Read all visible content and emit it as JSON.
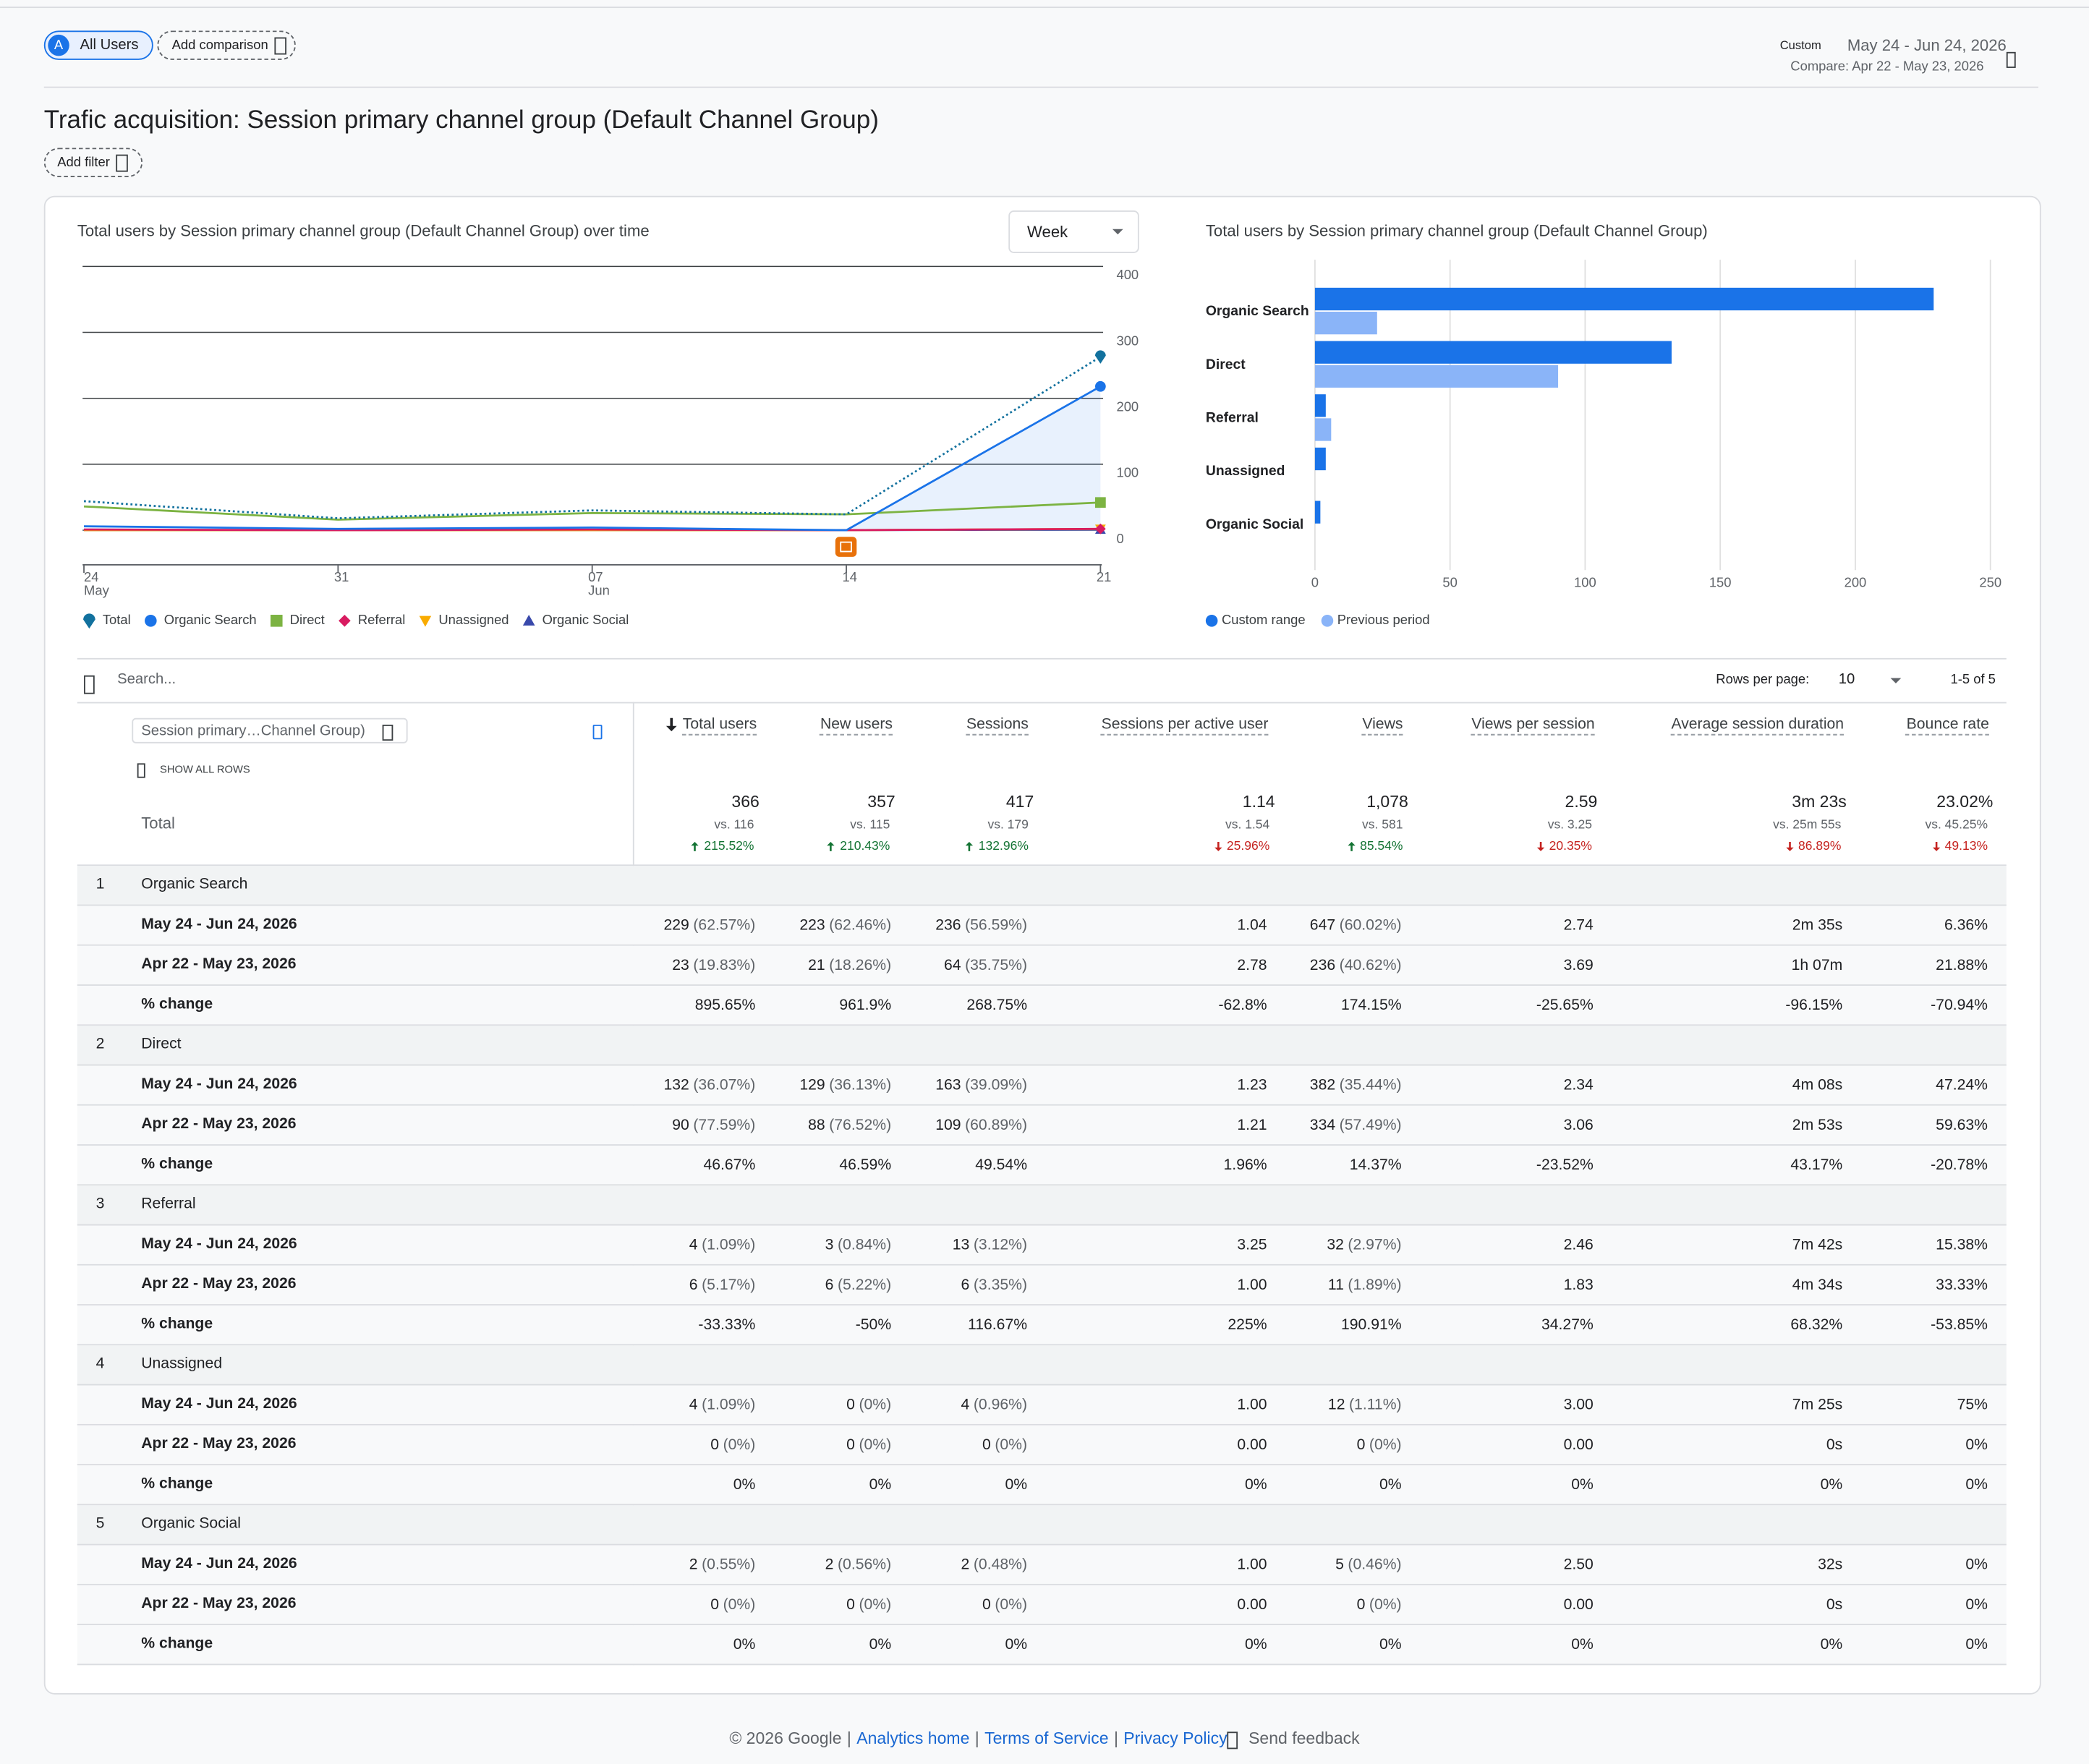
{
  "header": {
    "segment_badge": "A",
    "segment": "All Users",
    "add_comparison": "Add comparison",
    "range_type": "Custom",
    "date_range": "May 24 - Jun 24, 2026",
    "compare": "Compare: Apr 22 - May 23, 2026"
  },
  "title": "Trafic acquisition: Session primary channel group (Default Channel Group)",
  "add_filter": "Add filter",
  "line_chart": {
    "type": "line",
    "title": "Total users by Session primary channel group (Default Channel Group) over time",
    "granularity": "Week",
    "x": [
      "24",
      "31",
      "07",
      "14",
      "21"
    ],
    "x_months": [
      "May",
      null,
      "Jun",
      null,
      null
    ],
    "ylim": [
      0,
      400
    ],
    "yticks": [
      0,
      100,
      200,
      300,
      400
    ],
    "grid": true,
    "y_axis_side": "right",
    "series": [
      {
        "name": "Total",
        "color": "#12719e",
        "marker": "pin",
        "dashed": true,
        "values": [
          44,
          18,
          30,
          24,
          263
        ]
      },
      {
        "name": "Organic Search",
        "color": "#1a73e8",
        "marker": "circle",
        "area": true,
        "values": [
          6,
          2,
          4,
          0,
          218
        ]
      },
      {
        "name": "Direct",
        "color": "#7cb342",
        "marker": "square",
        "values": [
          36,
          16,
          26,
          24,
          42
        ]
      },
      {
        "name": "Referral",
        "color": "#d81b60",
        "marker": "diamond",
        "values": [
          1,
          0,
          1,
          0,
          2
        ]
      },
      {
        "name": "Unassigned",
        "color": "#f9ab00",
        "marker": "triangle-down",
        "values": [
          0,
          0,
          0,
          0,
          2
        ]
      },
      {
        "name": "Organic Social",
        "color": "#3949ab",
        "marker": "triangle-up",
        "values": [
          0,
          0,
          0,
          0,
          1
        ]
      }
    ]
  },
  "bar_chart": {
    "type": "bar",
    "title": "Total users by Session primary channel group (Default Channel Group)",
    "categories": [
      "Organic Search",
      "Direct",
      "Referral",
      "Unassigned",
      "Organic Social"
    ],
    "series": [
      {
        "name": "Custom range",
        "color": "#1a73e8",
        "values": [
          229,
          132,
          4,
          4,
          2
        ]
      },
      {
        "name": "Previous period",
        "color": "#8ab4f8",
        "values": [
          23,
          90,
          6,
          0,
          0
        ]
      }
    ],
    "xlim": [
      0,
      250
    ],
    "xticks": [
      0,
      50,
      100,
      150,
      200,
      250
    ],
    "grid": true
  },
  "table": {
    "search_placeholder": "Search...",
    "rows_per_page_label": "Rows per page:",
    "rows_per_page": 10,
    "pagination": "1-5 of 5",
    "dimension": "Session primary…Channel Group)",
    "show_all_rows": "SHOW ALL ROWS",
    "sort_column": 0,
    "columns": [
      "Total users",
      "New users",
      "Sessions",
      "Sessions per active user",
      "Views",
      "Views per session",
      "Average session duration",
      "Bounce rate"
    ],
    "total": {
      "label": "Total",
      "values": [
        "366",
        "357",
        "417",
        "1.14",
        "1,078",
        "2.59",
        "3m 23s",
        "23.02%"
      ],
      "compare": [
        "vs. 116",
        "vs. 115",
        "vs. 179",
        "vs. 1.54",
        "vs. 581",
        "vs. 3.25",
        "vs. 25m 55s",
        "vs. 45.25%"
      ],
      "changes": [
        "215.52%",
        "210.43%",
        "132.96%",
        "25.96%",
        "85.54%",
        "20.35%",
        "86.89%",
        "49.13%"
      ],
      "directions": [
        "up",
        "up",
        "up",
        "down",
        "up",
        "down",
        "down",
        "down"
      ]
    },
    "periods": [
      "May 24 - Jun 24, 2026",
      "Apr 22 - May 23, 2026",
      "% change"
    ],
    "groups": [
      {
        "index": 1,
        "name": "Organic Search",
        "rows": [
          [
            [
              "229",
              "(62.57%)"
            ],
            [
              "223",
              "(62.46%)"
            ],
            [
              "236",
              "(56.59%)"
            ],
            [
              "1.04"
            ],
            [
              "647",
              "(60.02%)"
            ],
            [
              "2.74"
            ],
            [
              "2m 35s"
            ],
            [
              "6.36%"
            ]
          ],
          [
            [
              "23",
              "(19.83%)"
            ],
            [
              "21",
              "(18.26%)"
            ],
            [
              "64",
              "(35.75%)"
            ],
            [
              "2.78"
            ],
            [
              "236",
              "(40.62%)"
            ],
            [
              "3.69"
            ],
            [
              "1h 07m"
            ],
            [
              "21.88%"
            ]
          ],
          [
            [
              "895.65%"
            ],
            [
              "961.9%"
            ],
            [
              "268.75%"
            ],
            [
              "-62.8%"
            ],
            [
              "174.15%"
            ],
            [
              "-25.65%"
            ],
            [
              "-96.15%"
            ],
            [
              "-70.94%"
            ]
          ]
        ]
      },
      {
        "index": 2,
        "name": "Direct",
        "rows": [
          [
            [
              "132",
              "(36.07%)"
            ],
            [
              "129",
              "(36.13%)"
            ],
            [
              "163",
              "(39.09%)"
            ],
            [
              "1.23"
            ],
            [
              "382",
              "(35.44%)"
            ],
            [
              "2.34"
            ],
            [
              "4m 08s"
            ],
            [
              "47.24%"
            ]
          ],
          [
            [
              "90",
              "(77.59%)"
            ],
            [
              "88",
              "(76.52%)"
            ],
            [
              "109",
              "(60.89%)"
            ],
            [
              "1.21"
            ],
            [
              "334",
              "(57.49%)"
            ],
            [
              "3.06"
            ],
            [
              "2m 53s"
            ],
            [
              "59.63%"
            ]
          ],
          [
            [
              "46.67%"
            ],
            [
              "46.59%"
            ],
            [
              "49.54%"
            ],
            [
              "1.96%"
            ],
            [
              "14.37%"
            ],
            [
              "-23.52%"
            ],
            [
              "43.17%"
            ],
            [
              "-20.78%"
            ]
          ]
        ]
      },
      {
        "index": 3,
        "name": "Referral",
        "rows": [
          [
            [
              "4",
              "(1.09%)"
            ],
            [
              "3",
              "(0.84%)"
            ],
            [
              "13",
              "(3.12%)"
            ],
            [
              "3.25"
            ],
            [
              "32",
              "(2.97%)"
            ],
            [
              "2.46"
            ],
            [
              "7m 42s"
            ],
            [
              "15.38%"
            ]
          ],
          [
            [
              "6",
              "(5.17%)"
            ],
            [
              "6",
              "(5.22%)"
            ],
            [
              "6",
              "(3.35%)"
            ],
            [
              "1.00"
            ],
            [
              "11",
              "(1.89%)"
            ],
            [
              "1.83"
            ],
            [
              "4m 34s"
            ],
            [
              "33.33%"
            ]
          ],
          [
            [
              "-33.33%"
            ],
            [
              "-50%"
            ],
            [
              "116.67%"
            ],
            [
              "225%"
            ],
            [
              "190.91%"
            ],
            [
              "34.27%"
            ],
            [
              "68.32%"
            ],
            [
              "-53.85%"
            ]
          ]
        ]
      },
      {
        "index": 4,
        "name": "Unassigned",
        "rows": [
          [
            [
              "4",
              "(1.09%)"
            ],
            [
              "0",
              "(0%)"
            ],
            [
              "4",
              "(0.96%)"
            ],
            [
              "1.00"
            ],
            [
              "12",
              "(1.11%)"
            ],
            [
              "3.00"
            ],
            [
              "7m 25s"
            ],
            [
              "75%"
            ]
          ],
          [
            [
              "0",
              "(0%)"
            ],
            [
              "0",
              "(0%)"
            ],
            [
              "0",
              "(0%)"
            ],
            [
              "0.00"
            ],
            [
              "0",
              "(0%)"
            ],
            [
              "0.00"
            ],
            [
              "0s"
            ],
            [
              "0%"
            ]
          ],
          [
            [
              "0%"
            ],
            [
              "0%"
            ],
            [
              "0%"
            ],
            [
              "0%"
            ],
            [
              "0%"
            ],
            [
              "0%"
            ],
            [
              "0%"
            ],
            [
              "0%"
            ]
          ]
        ]
      },
      {
        "index": 5,
        "name": "Organic Social",
        "rows": [
          [
            [
              "2",
              "(0.55%)"
            ],
            [
              "2",
              "(0.56%)"
            ],
            [
              "2",
              "(0.48%)"
            ],
            [
              "1.00"
            ],
            [
              "5",
              "(0.46%)"
            ],
            [
              "2.50"
            ],
            [
              "32s"
            ],
            [
              "0%"
            ]
          ],
          [
            [
              "0",
              "(0%)"
            ],
            [
              "0",
              "(0%)"
            ],
            [
              "0",
              "(0%)"
            ],
            [
              "0.00"
            ],
            [
              "0",
              "(0%)"
            ],
            [
              "0.00"
            ],
            [
              "0s"
            ],
            [
              "0%"
            ]
          ],
          [
            [
              "0%"
            ],
            [
              "0%"
            ],
            [
              "0%"
            ],
            [
              "0%"
            ],
            [
              "0%"
            ],
            [
              "0%"
            ],
            [
              "0%"
            ],
            [
              "0%"
            ]
          ]
        ]
      }
    ]
  },
  "footer": {
    "copyright": "© 2026 Google",
    "separator": "|",
    "links": [
      "Analytics home",
      "Terms of Service",
      "Privacy Policy"
    ],
    "feedback": "Send feedback"
  }
}
